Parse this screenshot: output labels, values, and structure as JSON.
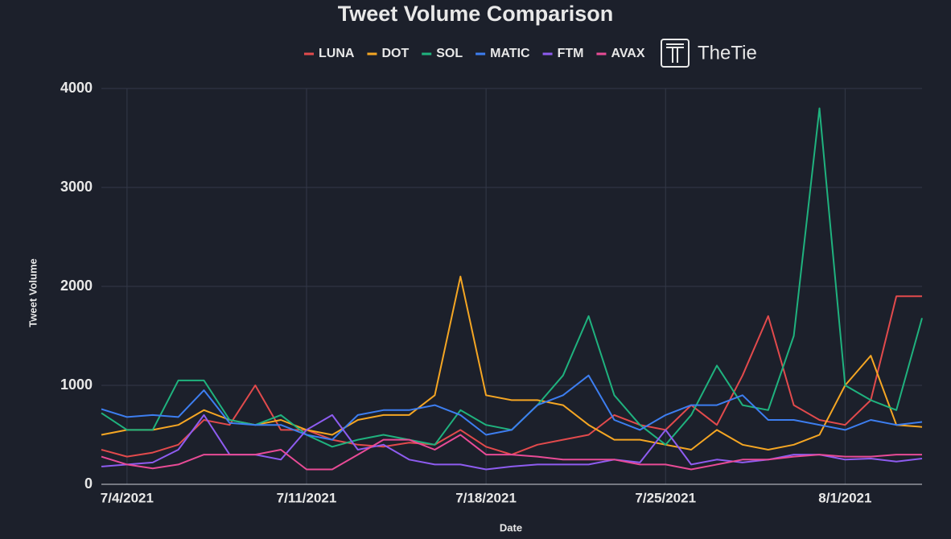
{
  "chart_data": {
    "type": "line",
    "title": "Tweet Volume Comparison",
    "brand": "TheTie",
    "x_label": "Date",
    "y_label": "Tweet Volume",
    "x": [
      "7/3/2021",
      "7/4/2021",
      "7/5/2021",
      "7/6/2021",
      "7/7/2021",
      "7/8/2021",
      "7/9/2021",
      "7/10/2021",
      "7/11/2021",
      "7/12/2021",
      "7/13/2021",
      "7/14/2021",
      "7/15/2021",
      "7/16/2021",
      "7/17/2021",
      "7/18/2021",
      "7/19/2021",
      "7/20/2021",
      "7/21/2021",
      "7/22/2021",
      "7/23/2021",
      "7/24/2021",
      "7/25/2021",
      "7/26/2021",
      "7/27/2021",
      "7/28/2021",
      "7/29/2021",
      "7/30/2021",
      "7/31/2021",
      "8/1/2021",
      "8/2/2021",
      "8/3/2021",
      "8/4/2021"
    ],
    "xlim": [
      "7/3/2021",
      "8/4/2021"
    ],
    "xticks": [
      "7/4/2021",
      "7/11/2021",
      "7/18/2021",
      "7/25/2021",
      "8/1/2021"
    ],
    "ylim": [
      0,
      4000
    ],
    "yticks": [
      0,
      1000,
      2000,
      3000,
      4000
    ],
    "grid": true,
    "series": [
      {
        "name": "LUNA",
        "color": "#e24a4c",
        "values": [
          350,
          280,
          320,
          400,
          650,
          600,
          1000,
          550,
          550,
          450,
          400,
          380,
          420,
          400,
          550,
          380,
          300,
          400,
          450,
          500,
          700,
          600,
          550,
          800,
          600,
          1100,
          1700,
          800,
          650,
          600,
          850,
          1900,
          1900
        ]
      },
      {
        "name": "DOT",
        "color": "#f5a623",
        "values": [
          500,
          550,
          550,
          600,
          750,
          650,
          600,
          650,
          550,
          500,
          650,
          700,
          700,
          900,
          2100,
          900,
          850,
          850,
          800,
          600,
          450,
          450,
          400,
          350,
          550,
          400,
          350,
          400,
          500,
          1000,
          1300,
          600,
          580
        ]
      },
      {
        "name": "SOL",
        "color": "#1fb27e",
        "values": [
          720,
          550,
          550,
          1050,
          1050,
          650,
          600,
          700,
          500,
          380,
          450,
          500,
          450,
          400,
          750,
          600,
          550,
          800,
          1100,
          1700,
          900,
          600,
          400,
          700,
          1200,
          800,
          750,
          1500,
          3800,
          1000,
          850,
          750,
          1680
        ]
      },
      {
        "name": "MATIC",
        "color": "#3d7ef0",
        "values": [
          760,
          680,
          700,
          680,
          950,
          620,
          600,
          600,
          500,
          450,
          700,
          750,
          750,
          800,
          700,
          500,
          550,
          800,
          900,
          1100,
          650,
          550,
          700,
          800,
          800,
          900,
          650,
          650,
          600,
          550,
          650,
          600,
          630
        ]
      },
      {
        "name": "FTM",
        "color": "#8e5cf0",
        "values": [
          180,
          200,
          220,
          350,
          700,
          300,
          300,
          250,
          550,
          700,
          350,
          400,
          250,
          200,
          200,
          150,
          180,
          200,
          200,
          200,
          250,
          220,
          550,
          200,
          250,
          220,
          250,
          300,
          300,
          250,
          260,
          230,
          260
        ]
      },
      {
        "name": "AVAX",
        "color": "#e84b96",
        "values": [
          280,
          200,
          160,
          200,
          300,
          300,
          300,
          350,
          150,
          150,
          300,
          450,
          450,
          350,
          500,
          300,
          300,
          280,
          250,
          250,
          250,
          200,
          200,
          150,
          200,
          250,
          250,
          280,
          300,
          280,
          280,
          300,
          300
        ]
      }
    ]
  }
}
